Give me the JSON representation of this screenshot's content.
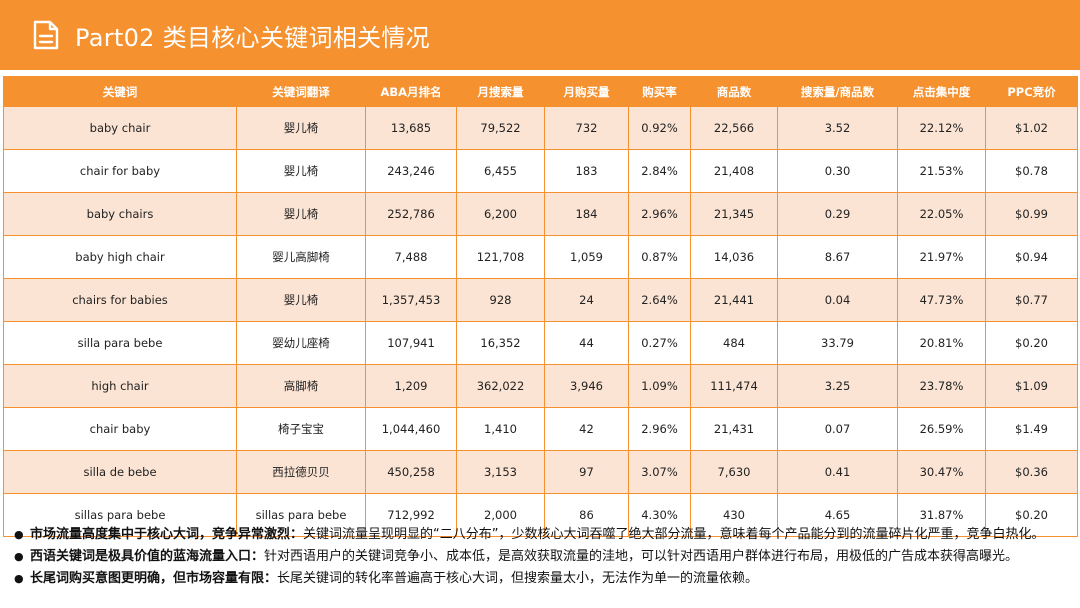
{
  "header": {
    "title": "Part02 类目核心关键词相关情况",
    "icon": "document-icon"
  },
  "table": {
    "columns": [
      "关键词",
      "关键词翻译",
      "ABA月排名",
      "月搜索量",
      "月购买量",
      "购买率",
      "商品数",
      "搜索量/商品数",
      "点击集中度",
      "PPC竞价"
    ],
    "rows": [
      [
        "baby chair",
        "婴儿椅",
        "13,685",
        "79,522",
        "732",
        "0.92%",
        "22,566",
        "3.52",
        "22.12%",
        "$1.02"
      ],
      [
        "chair for baby",
        "婴儿椅",
        "243,246",
        "6,455",
        "183",
        "2.84%",
        "21,408",
        "0.30",
        "21.53%",
        "$0.78"
      ],
      [
        "baby chairs",
        "婴儿椅",
        "252,786",
        "6,200",
        "184",
        "2.96%",
        "21,345",
        "0.29",
        "22.05%",
        "$0.99"
      ],
      [
        "baby high chair",
        "婴儿高脚椅",
        "7,488",
        "121,708",
        "1,059",
        "0.87%",
        "14,036",
        "8.67",
        "21.97%",
        "$0.94"
      ],
      [
        "chairs for babies",
        "婴儿椅",
        "1,357,453",
        "928",
        "24",
        "2.64%",
        "21,441",
        "0.04",
        "47.73%",
        "$0.77"
      ],
      [
        "silla para bebe",
        "婴幼儿座椅",
        "107,941",
        "16,352",
        "44",
        "0.27%",
        "484",
        "33.79",
        "20.81%",
        "$0.20"
      ],
      [
        "high chair",
        "高脚椅",
        "1,209",
        "362,022",
        "3,946",
        "1.09%",
        "111,474",
        "3.25",
        "23.78%",
        "$1.09"
      ],
      [
        "chair baby",
        "椅子宝宝",
        "1,044,460",
        "1,410",
        "42",
        "2.96%",
        "21,431",
        "0.07",
        "26.59%",
        "$1.49"
      ],
      [
        "silla de bebe",
        "西拉德贝贝",
        "450,258",
        "3,153",
        "97",
        "3.07%",
        "7,630",
        "0.41",
        "30.47%",
        "$0.36"
      ],
      [
        "sillas para bebe",
        "sillas para bebe",
        "712,992",
        "2,000",
        "86",
        "4.30%",
        "430",
        "4.65",
        "31.87%",
        "$0.20"
      ]
    ]
  },
  "notes": [
    {
      "lead": "市场流量高度集中于核心大词，竞争异常激烈：",
      "text": "关键词流量呈现明显的“二八分布”，少数核心大词吞噬了绝大部分流量，意味着每个产品能分到的流量碎片化严重，竞争白热化。"
    },
    {
      "lead": "西语关键词是极具价值的蓝海流量入口：",
      "text": "针对西语用户的关键词竞争小、成本低，是高效获取流量的洼地，可以针对西语用户群体进行布局，用极低的广告成本获得高曝光。"
    },
    {
      "lead": "长尾词购买意图更明确，但市场容量有限：",
      "text": "长尾关键词的转化率普遍高于核心大词，但搜索量太小，无法作为单一的流量依赖。"
    }
  ],
  "colors": {
    "accent": "#f5912f",
    "row_alt": "#fbe4d4"
  }
}
